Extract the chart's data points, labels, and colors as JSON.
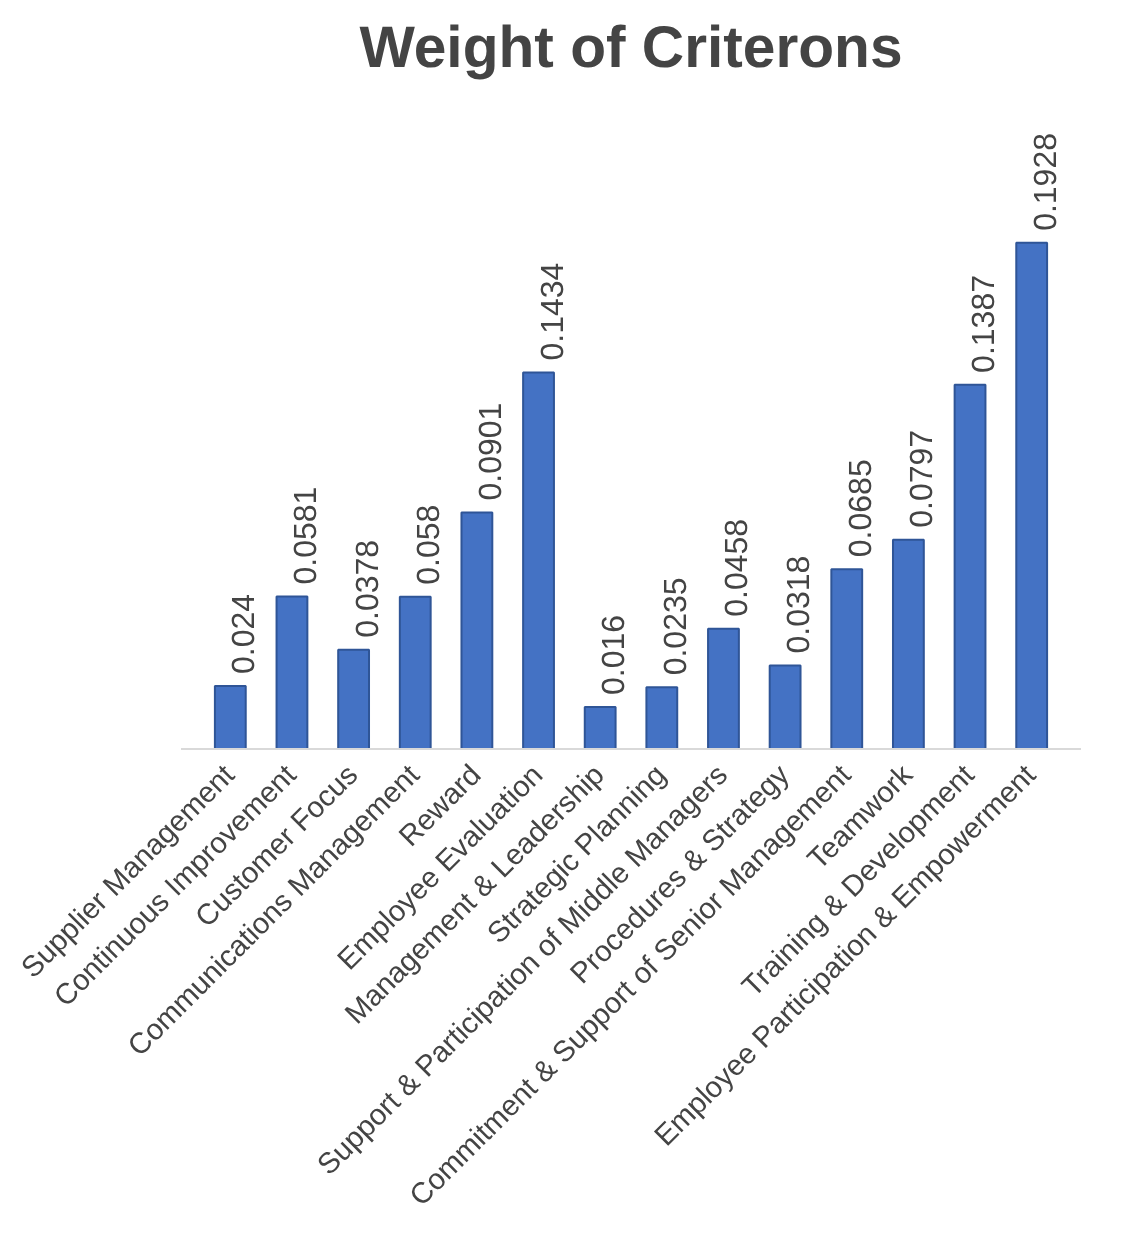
{
  "chart_data": {
    "type": "bar",
    "title": "Weight of Criterons",
    "categories": [
      "Supplier Management",
      "Continuous Improvement",
      "Customer Focus",
      "Communications Management",
      "Reward",
      "Employee Evaluation",
      "Management & Leadership",
      "Strategic Planning",
      "Support & Participation of Middle Managers",
      "Procedures & Strategy",
      "Commitment & Support of Senior Management",
      "Teamwork",
      "Training & Development",
      "Employee Participation & Empowerment"
    ],
    "values": [
      0.024,
      0.0581,
      0.0378,
      0.058,
      0.0901,
      0.1434,
      0.016,
      0.0235,
      0.0458,
      0.0318,
      0.0685,
      0.0797,
      0.1387,
      0.1928
    ],
    "color": "#4472c4",
    "data_labels": true,
    "grid": false
  }
}
